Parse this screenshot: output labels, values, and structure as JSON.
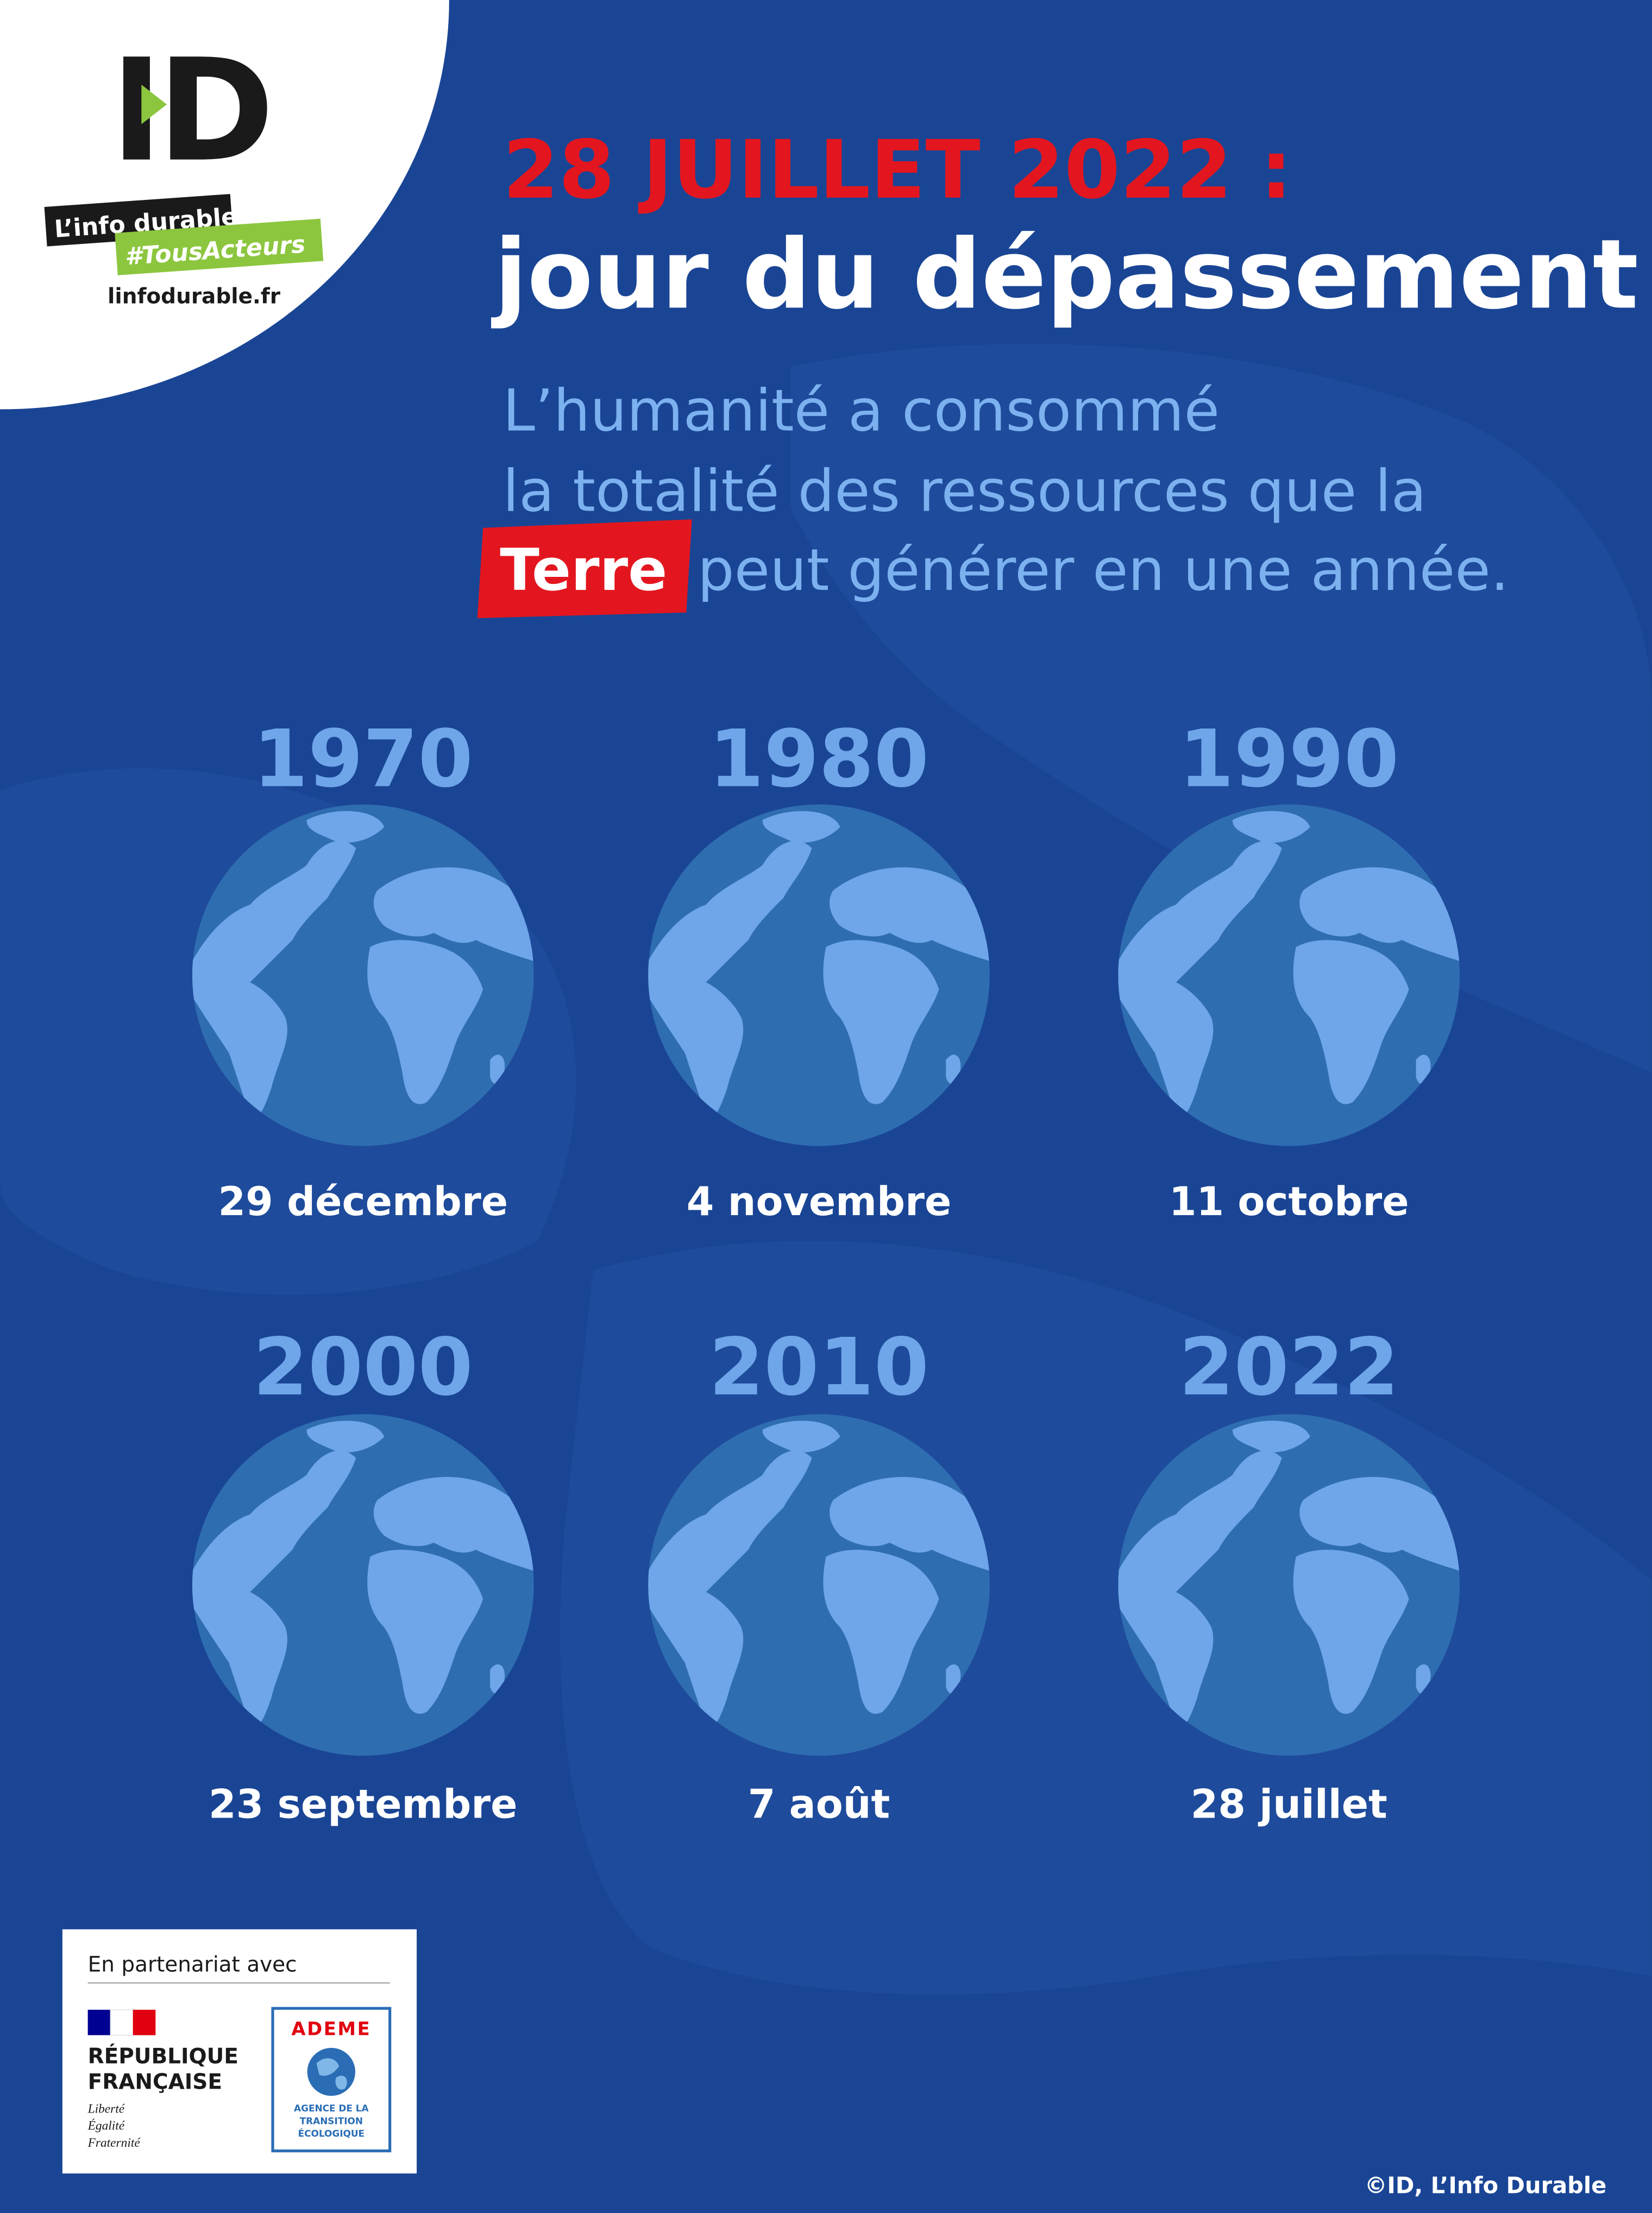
{
  "logo": {
    "mark": "ID",
    "tagline": "L’info durable.",
    "hashtag": "#TousActeurs",
    "url": "linfodurable.fr"
  },
  "header": {
    "title_line1": "28 JUILLET 2022 :",
    "title_line2": "jour du dépassement"
  },
  "subtitle": {
    "line1": "L’humanité a consommé",
    "line2": "la totalité des ressources que la",
    "highlight": "Terre",
    "line3_rest": "peut générer en une année."
  },
  "items": [
    {
      "year": "1970",
      "date": "29 décembre"
    },
    {
      "year": "1980",
      "date": "4 novembre"
    },
    {
      "year": "1990",
      "date": "11 octobre"
    },
    {
      "year": "2000",
      "date": "23 septembre"
    },
    {
      "year": "2010",
      "date": "7 août"
    },
    {
      "year": "2022",
      "date": "28 juillet"
    }
  ],
  "partner": {
    "intro": "En partenariat avec",
    "republique_line1": "RÉPUBLIQUE",
    "republique_line2": "FRANÇAISE",
    "motto": [
      "Liberté",
      "Égalité",
      "Fraternité"
    ],
    "ademe": "ADEME",
    "ademe_sub": [
      "AGENCE DE LA",
      "TRANSITION",
      "ÉCOLOGIQUE"
    ]
  },
  "credit": "©ID, L’Info Durable"
}
